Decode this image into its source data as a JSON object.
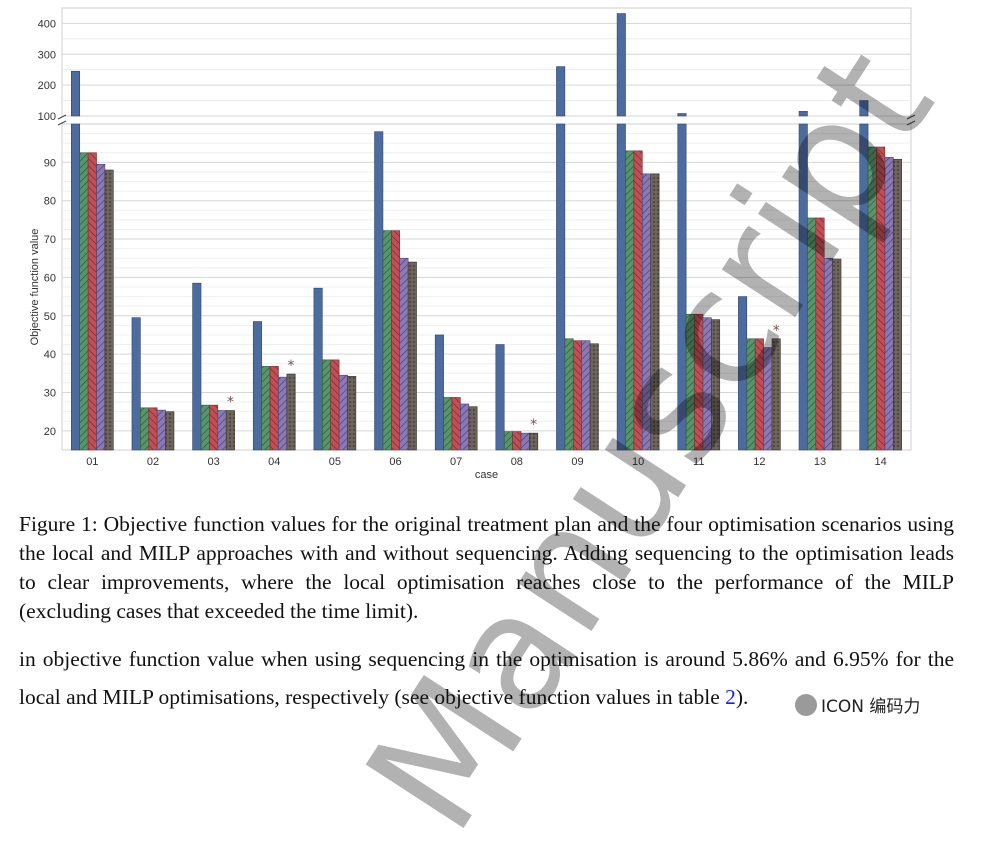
{
  "chart_data": {
    "type": "bar",
    "xlabel": "case",
    "ylabel": "Objective function value",
    "categories": [
      "01",
      "02",
      "03",
      "04",
      "05",
      "06",
      "07",
      "08",
      "09",
      "10",
      "11",
      "12",
      "13",
      "14"
    ],
    "y_axis_lower": {
      "range": [
        15,
        100
      ],
      "ticks": [
        20,
        30,
        40,
        50,
        60,
        70,
        80,
        90
      ]
    },
    "y_axis_upper": {
      "range": [
        100,
        450
      ],
      "ticks": [
        100,
        200,
        300,
        400
      ]
    },
    "axis_break": true,
    "grid": true,
    "series": [
      {
        "values": [
          245,
          49.5,
          58.5,
          48.5,
          57.2,
          98.0,
          45.0,
          42.5,
          260,
          432,
          108,
          55.0,
          115,
          150
        ],
        "color": "#4c6b9e",
        "pattern": "solid"
      },
      {
        "values": [
          92.5,
          26.0,
          26.7,
          36.8,
          38.5,
          72.2,
          28.7,
          19.8,
          44.0,
          93.0,
          50.4,
          44.0,
          75.5,
          94.0
        ],
        "color": "#58956b",
        "pattern": "hatch-forward"
      },
      {
        "values": [
          92.5,
          26.0,
          26.7,
          36.8,
          38.5,
          72.2,
          28.7,
          19.8,
          43.5,
          93.0,
          50.4,
          44.0,
          75.5,
          94.0
        ],
        "color": "#c24f55",
        "pattern": "hatch-back"
      },
      {
        "values": [
          89.5,
          25.4,
          25.3,
          34.0,
          34.5,
          65.0,
          27.0,
          19.4,
          43.5,
          87.0,
          49.5,
          41.7,
          65.0,
          91.3
        ],
        "color": "#8a79b5",
        "pattern": "hatch-forward"
      },
      {
        "values": [
          88.0,
          25.0,
          25.3,
          34.8,
          34.2,
          64.0,
          26.3,
          19.4,
          42.7,
          87.0,
          49.0,
          44.0,
          64.8,
          90.8
        ],
        "color": "#6d655c",
        "pattern": "dots"
      }
    ],
    "star_markers": [
      {
        "case": "03",
        "series": 4,
        "label": "*"
      },
      {
        "case": "04",
        "series": 4,
        "label": "*"
      },
      {
        "case": "08",
        "series": 4,
        "label": "*"
      },
      {
        "case": "12",
        "series": 4,
        "label": "*"
      }
    ]
  },
  "text": {
    "caption": "Figure 1: Objective function values for the original treatment plan and the four optimisation scenarios using the local and MILP approaches with and without sequencing. Adding sequencing to the optimisation leads to clear improvements, where the local optimisation reaches close to the performance of the MILP (excluding cases that exceeded the time limit).",
    "body_main": "in objective function value when using sequencing in the optimisation is around 5.86% and 6.95% for the local and MILP optimisations, respectively (see objective function values in table ",
    "body_ref": "2",
    "body_end": ").",
    "watermark": "Manuscript",
    "logo_text": "ICON 编码力"
  }
}
